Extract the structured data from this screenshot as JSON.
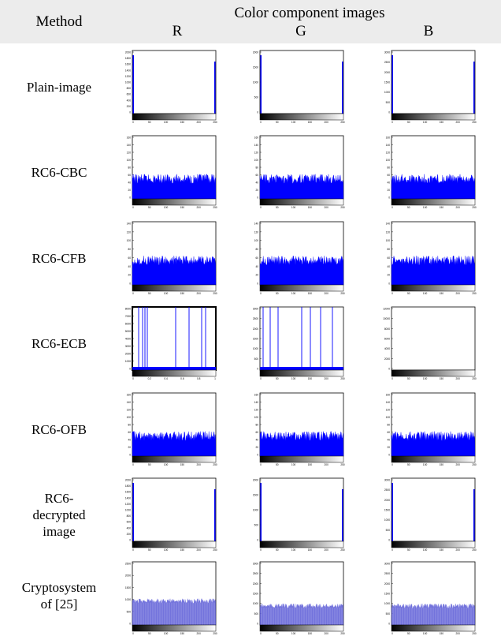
{
  "header": {
    "method_label": "Method",
    "group_title": "Color component images",
    "channels": [
      "R",
      "G",
      "B"
    ]
  },
  "colors": {
    "header_bg": "#ececec",
    "histogram": "#0000ff",
    "histogram_soft": "#5b5bd6"
  },
  "rows": [
    {
      "method": "Plain-image",
      "cells": [
        {
          "kind": "spike",
          "yticks": [
            "2000",
            "1800",
            "1600",
            "1400",
            "1200",
            "1000",
            "800",
            "600",
            "400",
            "200",
            "0"
          ],
          "xticks": [
            "0",
            "50",
            "100",
            "150",
            "200",
            "250"
          ]
        },
        {
          "kind": "spike",
          "yticks": [
            "2000",
            "1500",
            "1000",
            "500",
            "0"
          ],
          "xticks": [
            "0",
            "50",
            "100",
            "150",
            "200",
            "250"
          ]
        },
        {
          "kind": "spike",
          "yticks": [
            "3000",
            "2500",
            "2000",
            "1500",
            "1000",
            "500",
            "0"
          ],
          "xticks": [
            "0",
            "50",
            "100",
            "150",
            "200",
            "250"
          ]
        }
      ]
    },
    {
      "method": "RC6-CBC",
      "cells": [
        {
          "kind": "noise",
          "level": 0.33,
          "yticks": [
            "160",
            "140",
            "120",
            "100",
            "80",
            "60",
            "40",
            "20",
            "0"
          ],
          "xticks": [
            "0",
            "50",
            "100",
            "150",
            "200",
            "250"
          ]
        },
        {
          "kind": "noise",
          "level": 0.33,
          "yticks": [
            "160",
            "140",
            "120",
            "100",
            "80",
            "60",
            "40",
            "20",
            "0"
          ],
          "xticks": [
            "0",
            "50",
            "100",
            "150",
            "200",
            "250"
          ]
        },
        {
          "kind": "noise",
          "level": 0.33,
          "yticks": [
            "160",
            "140",
            "120",
            "100",
            "80",
            "60",
            "40",
            "20",
            "0"
          ],
          "xticks": [
            "0",
            "50",
            "100",
            "150",
            "200",
            "250"
          ]
        }
      ]
    },
    {
      "method": "RC6-CFB",
      "cells": [
        {
          "kind": "noise",
          "level": 0.4,
          "yticks": [
            "140",
            "120",
            "100",
            "80",
            "60",
            "40",
            "20",
            "0"
          ],
          "xticks": [
            "0",
            "50",
            "100",
            "150",
            "200",
            "250"
          ]
        },
        {
          "kind": "noise",
          "level": 0.4,
          "yticks": [
            "140",
            "120",
            "100",
            "80",
            "60",
            "40",
            "20",
            "0"
          ],
          "xticks": [
            "0",
            "50",
            "100",
            "150",
            "200",
            "250"
          ]
        },
        {
          "kind": "noise",
          "level": 0.4,
          "yticks": [
            "140",
            "120",
            "100",
            "80",
            "60",
            "40",
            "20",
            "0"
          ],
          "xticks": [
            "0",
            "50",
            "100",
            "150",
            "200",
            "250"
          ]
        }
      ]
    },
    {
      "method": "RC6-ECB",
      "cells": [
        {
          "kind": "ecb",
          "thick": true,
          "yticks": [
            "8000",
            "7000",
            "6000",
            "5000",
            "4000",
            "3000",
            "2000",
            "1000",
            "0"
          ],
          "xticks": [
            "0",
            "0.2",
            "0.4",
            "0.6",
            "0.8",
            "1"
          ]
        },
        {
          "kind": "ecb",
          "thick": false,
          "yticks": [
            "3000",
            "2500",
            "2000",
            "1500",
            "1000",
            "500",
            "0"
          ],
          "xticks": [
            "0",
            "50",
            "100",
            "150",
            "200",
            "250"
          ]
        },
        {
          "kind": "empty",
          "yticks": [
            "12000",
            "10000",
            "8000",
            "6000",
            "4000",
            "2000",
            "0"
          ],
          "xticks": [
            "0",
            "50",
            "100",
            "150",
            "200",
            "250"
          ]
        }
      ]
    },
    {
      "method": "RC6-OFB",
      "cells": [
        {
          "kind": "noise",
          "level": 0.33,
          "yticks": [
            "160",
            "140",
            "120",
            "100",
            "80",
            "60",
            "40",
            "20",
            "0"
          ],
          "xticks": [
            "0",
            "50",
            "100",
            "150",
            "200",
            "250"
          ]
        },
        {
          "kind": "noise",
          "level": 0.33,
          "yticks": [
            "160",
            "140",
            "120",
            "100",
            "80",
            "60",
            "40",
            "20",
            "0"
          ],
          "xticks": [
            "0",
            "50",
            "100",
            "150",
            "200",
            "250"
          ]
        },
        {
          "kind": "noise",
          "level": 0.33,
          "yticks": [
            "160",
            "140",
            "120",
            "100",
            "80",
            "60",
            "40",
            "20",
            "0"
          ],
          "xticks": [
            "0",
            "50",
            "100",
            "150",
            "200",
            "250"
          ]
        }
      ]
    },
    {
      "method": "RC6-\ndecrypted\nimage",
      "cells": [
        {
          "kind": "spike",
          "yticks": [
            "2000",
            "1800",
            "1600",
            "1400",
            "1200",
            "1000",
            "800",
            "600",
            "400",
            "200",
            "0"
          ],
          "xticks": [
            "0",
            "50",
            "100",
            "150",
            "200",
            "250"
          ]
        },
        {
          "kind": "spike",
          "yticks": [
            "2000",
            "1500",
            "1000",
            "500",
            "0"
          ],
          "xticks": [
            "0",
            "50",
            "100",
            "150",
            "200",
            "250"
          ]
        },
        {
          "kind": "spike",
          "yticks": [
            "3000",
            "2500",
            "2000",
            "1500",
            "1000",
            "500",
            "0"
          ],
          "xticks": [
            "0",
            "50",
            "100",
            "150",
            "200",
            "250"
          ]
        }
      ]
    },
    {
      "method": "Cryptosystem\nof [25]",
      "cells": [
        {
          "kind": "soft",
          "level": 0.38,
          "yticks": [
            "2500",
            "2000",
            "1500",
            "1000",
            "500",
            "0"
          ],
          "xticks": [
            "0",
            "50",
            "100",
            "150",
            "200",
            "250"
          ]
        },
        {
          "kind": "soft",
          "level": 0.3,
          "yticks": [
            "3000",
            "2500",
            "2000",
            "1500",
            "1000",
            "500",
            "0"
          ],
          "xticks": [
            "0",
            "50",
            "100",
            "150",
            "200",
            "250"
          ]
        },
        {
          "kind": "soft",
          "level": 0.3,
          "yticks": [
            "3000",
            "2500",
            "2000",
            "1500",
            "1000",
            "500",
            "0"
          ],
          "xticks": [
            "0",
            "50",
            "100",
            "150",
            "200",
            "250"
          ]
        }
      ]
    }
  ]
}
